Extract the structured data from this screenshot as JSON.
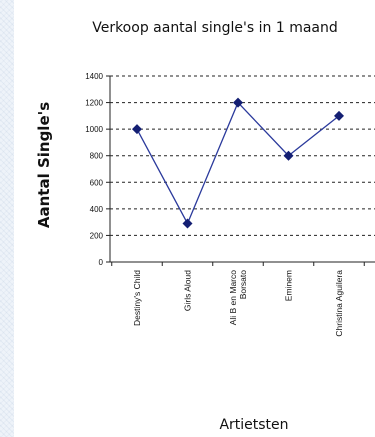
{
  "chart_data": {
    "type": "line",
    "title": "Verkoop aantal single's in 1 maand",
    "xlabel": "Artietsten",
    "ylabel": "Aantal Single's",
    "categories": [
      "Destiny's Child",
      "Girls Aloud",
      "Ali B en Marco Borsato",
      "Eminem",
      "Christina Aguilera"
    ],
    "category_tick_lines": [
      [
        "Destiny's Child"
      ],
      [
        "Girls Aloud"
      ],
      [
        "Ali B en Marco",
        "Borsato"
      ],
      [
        "Eminem"
      ],
      [
        "Christina Aguilera"
      ]
    ],
    "series": [
      {
        "values": [
          1000,
          290,
          1200,
          800,
          1100
        ],
        "color": "#2b3a9c"
      }
    ],
    "ylim": [
      0,
      1400
    ],
    "yticks": [
      0,
      200,
      400,
      600,
      800,
      1000,
      1200,
      1400
    ],
    "ytick_labels": [
      "0",
      "200",
      "400",
      "600",
      "800",
      "1000",
      "1200",
      "1400"
    ],
    "grid": "horizontal-dashed",
    "legend": "none"
  }
}
